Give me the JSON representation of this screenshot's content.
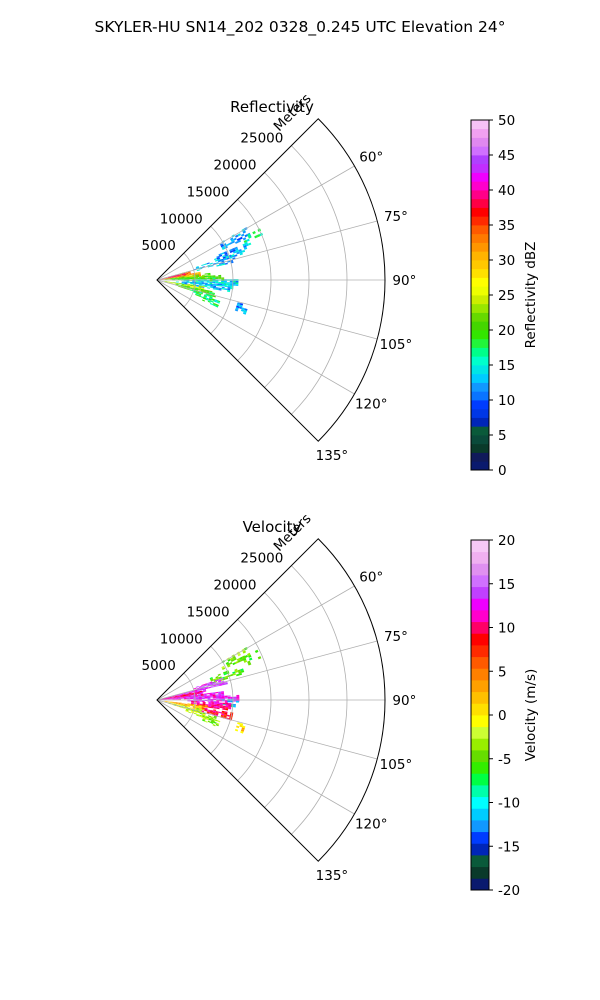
{
  "figure": {
    "suptitle": "SKYLER-HU  SN14_202  0328_0.245 UTC Elevation 24°"
  },
  "chart_data": [
    {
      "type": "heatmap",
      "projection": "polar-sector",
      "title": "Reflectivity",
      "range_label": "Meters",
      "range_ticks": [
        5000,
        10000,
        15000,
        20000,
        25000
      ],
      "range_tick_labels": [
        "5000",
        "10000",
        "15000",
        "20000",
        "25000"
      ],
      "rlim": [
        0,
        30000
      ],
      "azimuth_range_deg": [
        45,
        135
      ],
      "azimuth_ticks_deg": [
        60,
        75,
        90,
        105,
        120,
        135
      ],
      "azimuth_tick_labels": [
        "60°",
        "75°",
        "90°",
        "105°",
        "120°",
        "135°"
      ],
      "grid": true,
      "colorbar": {
        "label": "Reflectivity dBZ",
        "vmin": 0,
        "vmax": 50,
        "ticks": [
          0,
          5,
          10,
          15,
          20,
          25,
          30,
          35,
          40,
          45,
          50
        ],
        "colors": [
          "#0a1a6e",
          "#101a5a",
          "#0a3a2a",
          "#0a4a3a",
          "#0a5a3a",
          "#0026b8",
          "#0037e6",
          "#003cff",
          "#0a74ff",
          "#1198ff",
          "#00ccff",
          "#00e6e6",
          "#00ffcc",
          "#00ff8a",
          "#22f53b",
          "#33e600",
          "#44d600",
          "#66d900",
          "#99e600",
          "#ccee00",
          "#eeff00",
          "#ffff00",
          "#ffe100",
          "#ffc800",
          "#ffb400",
          "#ff9600",
          "#ff7a00",
          "#ff5a00",
          "#ff2a00",
          "#ff0000",
          "#ff0044",
          "#ff0088",
          "#ff00cc",
          "#f000ff",
          "#c22eff",
          "#b040ff",
          "#d070ff",
          "#e088f0",
          "#f0a0f0",
          "#f6c2f6"
        ],
        "extent": "0 to 50 dBZ"
      },
      "patches": [
        {
          "az": 62,
          "r0": 9500,
          "r1": 13500,
          "value": 12,
          "density": 0.5
        },
        {
          "az": 66,
          "r0": 12500,
          "r1": 14800,
          "value": 16,
          "density": 0.45
        },
        {
          "az": 70,
          "r0": 8000,
          "r1": 12500,
          "value": 12,
          "density": 0.55
        },
        {
          "az": 74,
          "r0": 5000,
          "r1": 10500,
          "value": 13,
          "density": 0.6
        },
        {
          "az": 77,
          "r0": 1500,
          "r1": 4500,
          "value": 34,
          "density": 0.9
        },
        {
          "az": 79,
          "r0": 0,
          "r1": 3500,
          "value": 40,
          "density": 0.95
        },
        {
          "az": 82,
          "r0": 500,
          "r1": 5500,
          "value": 32,
          "density": 0.9
        },
        {
          "az": 85,
          "r0": 1000,
          "r1": 7000,
          "value": 22,
          "density": 0.85
        },
        {
          "az": 88,
          "r0": 2000,
          "r1": 8500,
          "value": 20,
          "density": 0.8
        },
        {
          "az": 92,
          "r0": 3500,
          "r1": 10500,
          "value": 14,
          "density": 0.75
        },
        {
          "az": 96,
          "r0": 2500,
          "r1": 10000,
          "value": 13,
          "density": 0.75
        },
        {
          "az": 100,
          "r0": 1000,
          "r1": 6000,
          "value": 24,
          "density": 0.8
        },
        {
          "az": 104,
          "r0": 2500,
          "r1": 7500,
          "value": 20,
          "density": 0.8
        },
        {
          "az": 108,
          "r0": 5000,
          "r1": 8000,
          "value": 18,
          "density": 0.7
        },
        {
          "az": 108,
          "r0": 11000,
          "r1": 12500,
          "value": 12,
          "density": 0.6
        },
        {
          "az": 111,
          "r0": 6500,
          "r1": 8500,
          "value": 17,
          "density": 0.6
        }
      ]
    },
    {
      "type": "heatmap",
      "projection": "polar-sector",
      "title": "Velocity",
      "range_label": "Meters",
      "range_ticks": [
        5000,
        10000,
        15000,
        20000,
        25000
      ],
      "range_tick_labels": [
        "5000",
        "10000",
        "15000",
        "20000",
        "25000"
      ],
      "rlim": [
        0,
        30000
      ],
      "azimuth_range_deg": [
        45,
        135
      ],
      "azimuth_ticks_deg": [
        60,
        75,
        90,
        105,
        120,
        135
      ],
      "azimuth_tick_labels": [
        "60°",
        "75°",
        "90°",
        "105°",
        "120°",
        "135°"
      ],
      "grid": true,
      "colorbar": {
        "label": "Velocity (m/s)",
        "vmin": -20,
        "vmax": 20,
        "ticks": [
          -20,
          -15,
          -10,
          -5,
          0,
          5,
          10,
          15,
          20
        ],
        "colors": [
          "#0a1a6e",
          "#0a3a2a",
          "#0a5a3a",
          "#0026b8",
          "#003cff",
          "#1198ff",
          "#00ccff",
          "#00ffff",
          "#00ffaa",
          "#00ff44",
          "#33ee00",
          "#66dd00",
          "#99ee00",
          "#ccff33",
          "#ffff00",
          "#ffe000",
          "#ffc000",
          "#ffa000",
          "#ff8000",
          "#ff5a00",
          "#ff2a00",
          "#ff0000",
          "#ff0066",
          "#ff00cc",
          "#ee00ff",
          "#c040ff",
          "#d070ff",
          "#e090f0",
          "#f0b0f0",
          "#f6c8f6"
        ],
        "extent": "-20 to 20 m/s"
      },
      "patches": [
        {
          "az": 62,
          "r0": 9500,
          "r1": 13500,
          "value": -4,
          "density": 0.5
        },
        {
          "az": 66,
          "r0": 12500,
          "r1": 14800,
          "value": -5,
          "density": 0.45
        },
        {
          "az": 70,
          "r0": 7500,
          "r1": 12000,
          "value": -5,
          "density": 0.55
        },
        {
          "az": 74,
          "r0": 5000,
          "r1": 9500,
          "value": 14,
          "density": 0.75
        },
        {
          "az": 78,
          "r0": 500,
          "r1": 6500,
          "value": 13,
          "density": 0.9
        },
        {
          "az": 81,
          "r0": 0,
          "r1": 6000,
          "value": 10,
          "density": 0.95
        },
        {
          "az": 85,
          "r0": 500,
          "r1": 8500,
          "value": 12,
          "density": 0.9
        },
        {
          "az": 89,
          "r0": 4000,
          "r1": 10500,
          "value": 13,
          "density": 0.8
        },
        {
          "az": 92,
          "r0": 8500,
          "r1": 10500,
          "value": -11,
          "density": 0.6
        },
        {
          "az": 95,
          "r0": 4500,
          "r1": 9500,
          "value": 10,
          "density": 0.8
        },
        {
          "az": 99,
          "r0": 1000,
          "r1": 6500,
          "value": 2,
          "density": 0.8
        },
        {
          "az": 102,
          "r0": 6000,
          "r1": 10000,
          "value": 9,
          "density": 0.75
        },
        {
          "az": 104,
          "r0": 1500,
          "r1": 6000,
          "value": -2,
          "density": 0.8
        },
        {
          "az": 108,
          "r0": 4000,
          "r1": 8000,
          "value": -3,
          "density": 0.7
        },
        {
          "az": 108,
          "r0": 11000,
          "r1": 12500,
          "value": 1,
          "density": 0.6
        },
        {
          "az": 111,
          "r0": 6500,
          "r1": 8500,
          "value": -4,
          "density": 0.6
        }
      ]
    }
  ]
}
